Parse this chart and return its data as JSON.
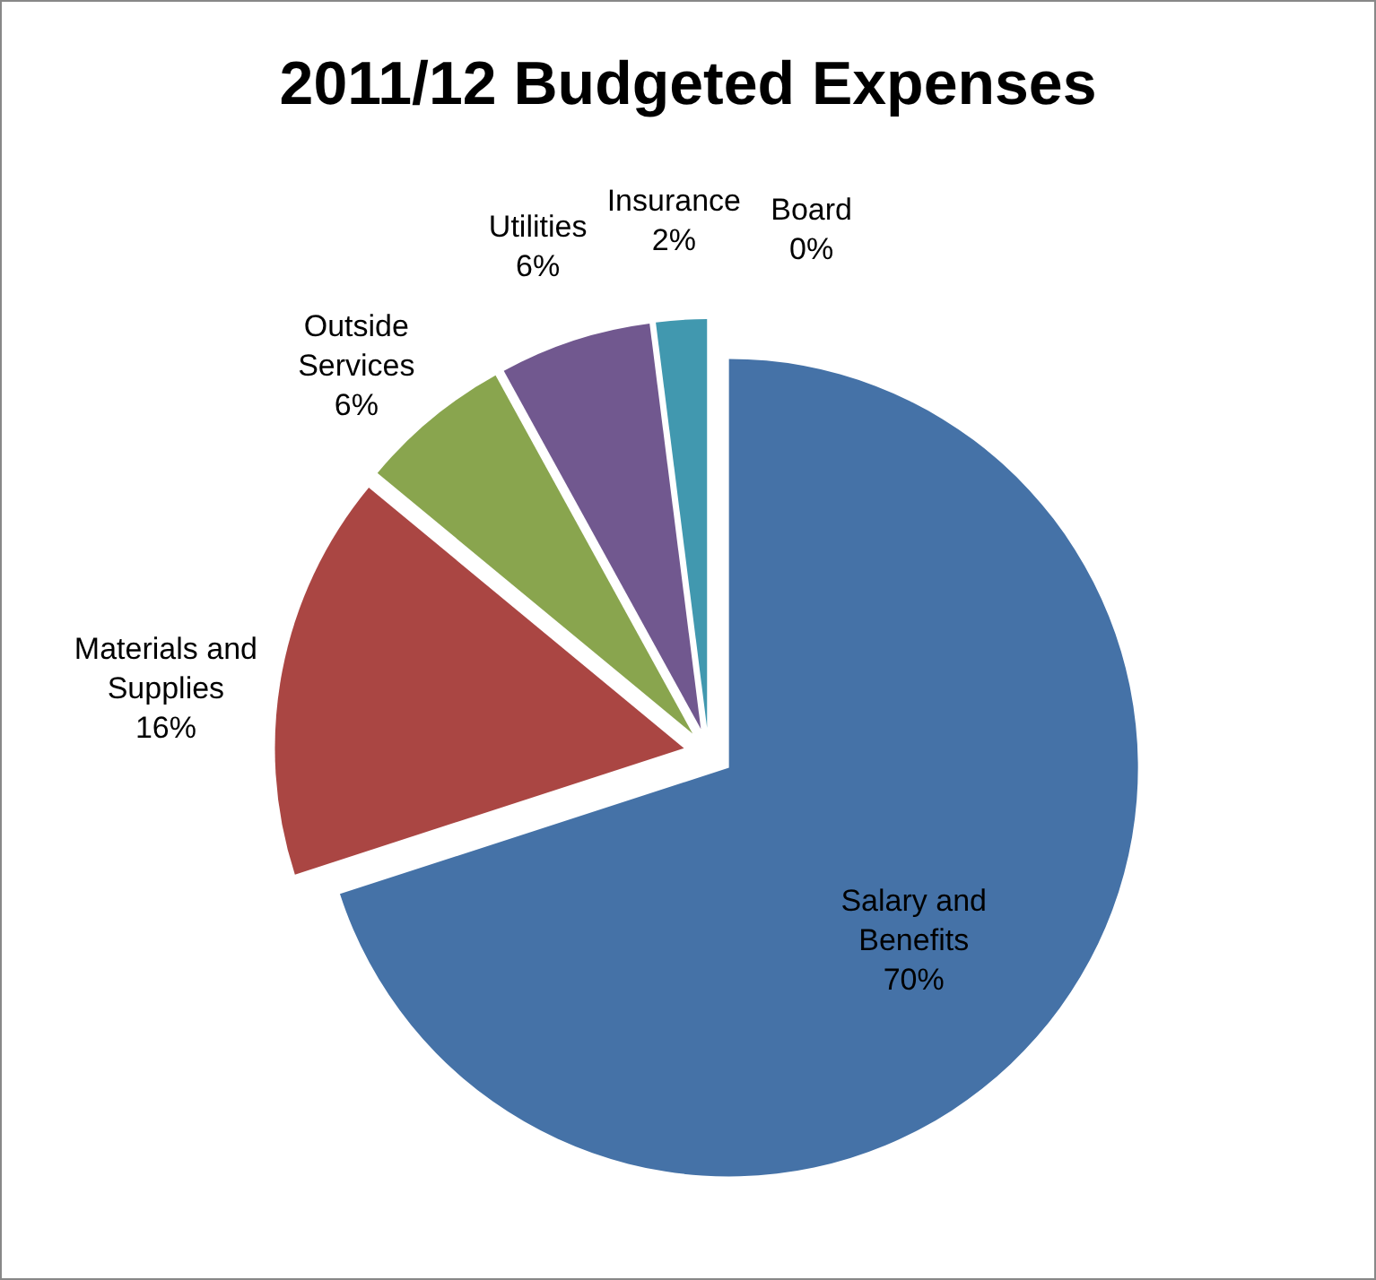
{
  "chart_data": {
    "type": "pie",
    "title": "2011/12 Budgeted Expenses",
    "categories": [
      "Salary and\nBenefits",
      "Materials and\nSupplies",
      "Outside\nServices",
      "Utilities",
      "Insurance",
      "Board"
    ],
    "values": [
      70,
      16,
      6,
      6,
      2,
      0
    ],
    "value_labels": [
      "70%",
      "16%",
      "6%",
      "6%",
      "2%",
      "0%"
    ],
    "colors": [
      "#4572a7",
      "#aa4643",
      "#89a54e",
      "#71588f",
      "#4198af",
      "#db843d"
    ]
  }
}
